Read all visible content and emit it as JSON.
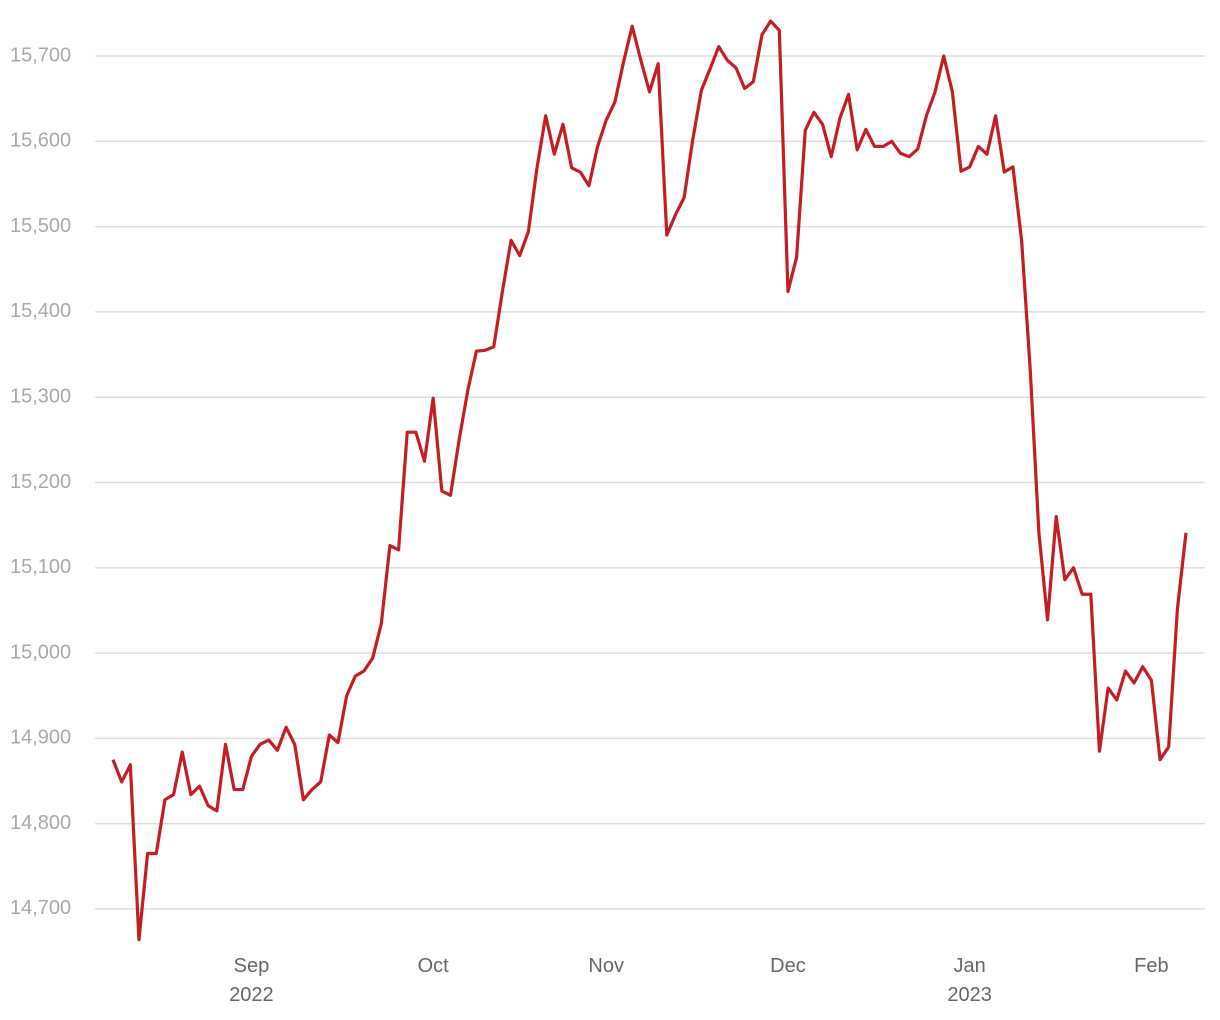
{
  "chart_data": {
    "type": "line",
    "categories": [
      null,
      null,
      null,
      null,
      null,
      null,
      null,
      null,
      null,
      null,
      null,
      null,
      null,
      null,
      null,
      null,
      "Sep\n2022",
      null,
      null,
      null,
      null,
      null,
      null,
      null,
      null,
      null,
      null,
      null,
      null,
      null,
      null,
      null,
      null,
      null,
      null,
      null,
      null,
      "Oct",
      null,
      null,
      null,
      null,
      null,
      null,
      null,
      null,
      null,
      null,
      null,
      null,
      null,
      null,
      null,
      null,
      null,
      null,
      null,
      "Nov",
      null,
      null,
      null,
      null,
      null,
      null,
      null,
      null,
      null,
      null,
      null,
      null,
      null,
      null,
      null,
      null,
      null,
      null,
      null,
      null,
      "Dec",
      null,
      null,
      null,
      null,
      null,
      null,
      null,
      null,
      null,
      null,
      null,
      null,
      null,
      null,
      null,
      null,
      null,
      null,
      null,
      null,
      "Jan\n2023",
      null,
      null,
      null,
      null,
      null,
      null,
      null,
      null,
      null,
      null,
      null,
      null,
      null,
      null,
      null,
      null,
      null,
      null,
      null,
      null,
      "Feb",
      null,
      null,
      null,
      null
    ],
    "values": [
      14875,
      14849,
      14869,
      14664,
      14765,
      14765,
      14828,
      14834,
      14884,
      14834,
      14844,
      14821,
      14815,
      14893,
      14840,
      14840,
      14879,
      14893,
      14898,
      14886,
      14913,
      14893,
      14828,
      14840,
      14849,
      14904,
      14895,
      14950,
      14973,
      14979,
      14994,
      15034,
      15126,
      15121,
      15259,
      15259,
      15225,
      15299,
      15190,
      15185,
      15250,
      15308,
      15354,
      15355,
      15359,
      15424,
      15484,
      15466,
      15494,
      15569,
      15630,
      15585,
      15620,
      15569,
      15564,
      15548,
      15594,
      15625,
      15646,
      15693,
      15735,
      15695,
      15658,
      15691,
      15490,
      15514,
      15534,
      15602,
      15660,
      15685,
      15711,
      15695,
      15686,
      15662,
      15670,
      15725,
      15741,
      15730,
      15424,
      15464,
      15613,
      15634,
      15620,
      15582,
      15627,
      15655,
      15590,
      15614,
      15594,
      15594,
      15600,
      15586,
      15582,
      15591,
      15630,
      15658,
      15700,
      15658,
      15565,
      15570,
      15594,
      15585,
      15630,
      15564,
      15570,
      15484,
      15332,
      15141,
      15039,
      15160,
      15086,
      15100,
      15069,
      15069,
      14885,
      14959,
      14945,
      14979,
      14965,
      14984,
      14968,
      14875,
      14890,
      15051,
      15141
    ],
    "color": "#c41e24",
    "ylim": [
      14650,
      15750
    ],
    "yticks": [
      {
        "value": 14700,
        "label": "14,700"
      },
      {
        "value": 14800,
        "label": "14,800"
      },
      {
        "value": 14900,
        "label": "14,900"
      },
      {
        "value": 15000,
        "label": "15,000"
      },
      {
        "value": 15100,
        "label": "15,100"
      },
      {
        "value": 15200,
        "label": "15,200"
      },
      {
        "value": 15300,
        "label": "15,300"
      },
      {
        "value": 15400,
        "label": "15,400"
      },
      {
        "value": 15500,
        "label": "15,500"
      },
      {
        "value": 15600,
        "label": "15,600"
      },
      {
        "value": 15700,
        "label": "15,700"
      }
    ],
    "grid": true
  }
}
